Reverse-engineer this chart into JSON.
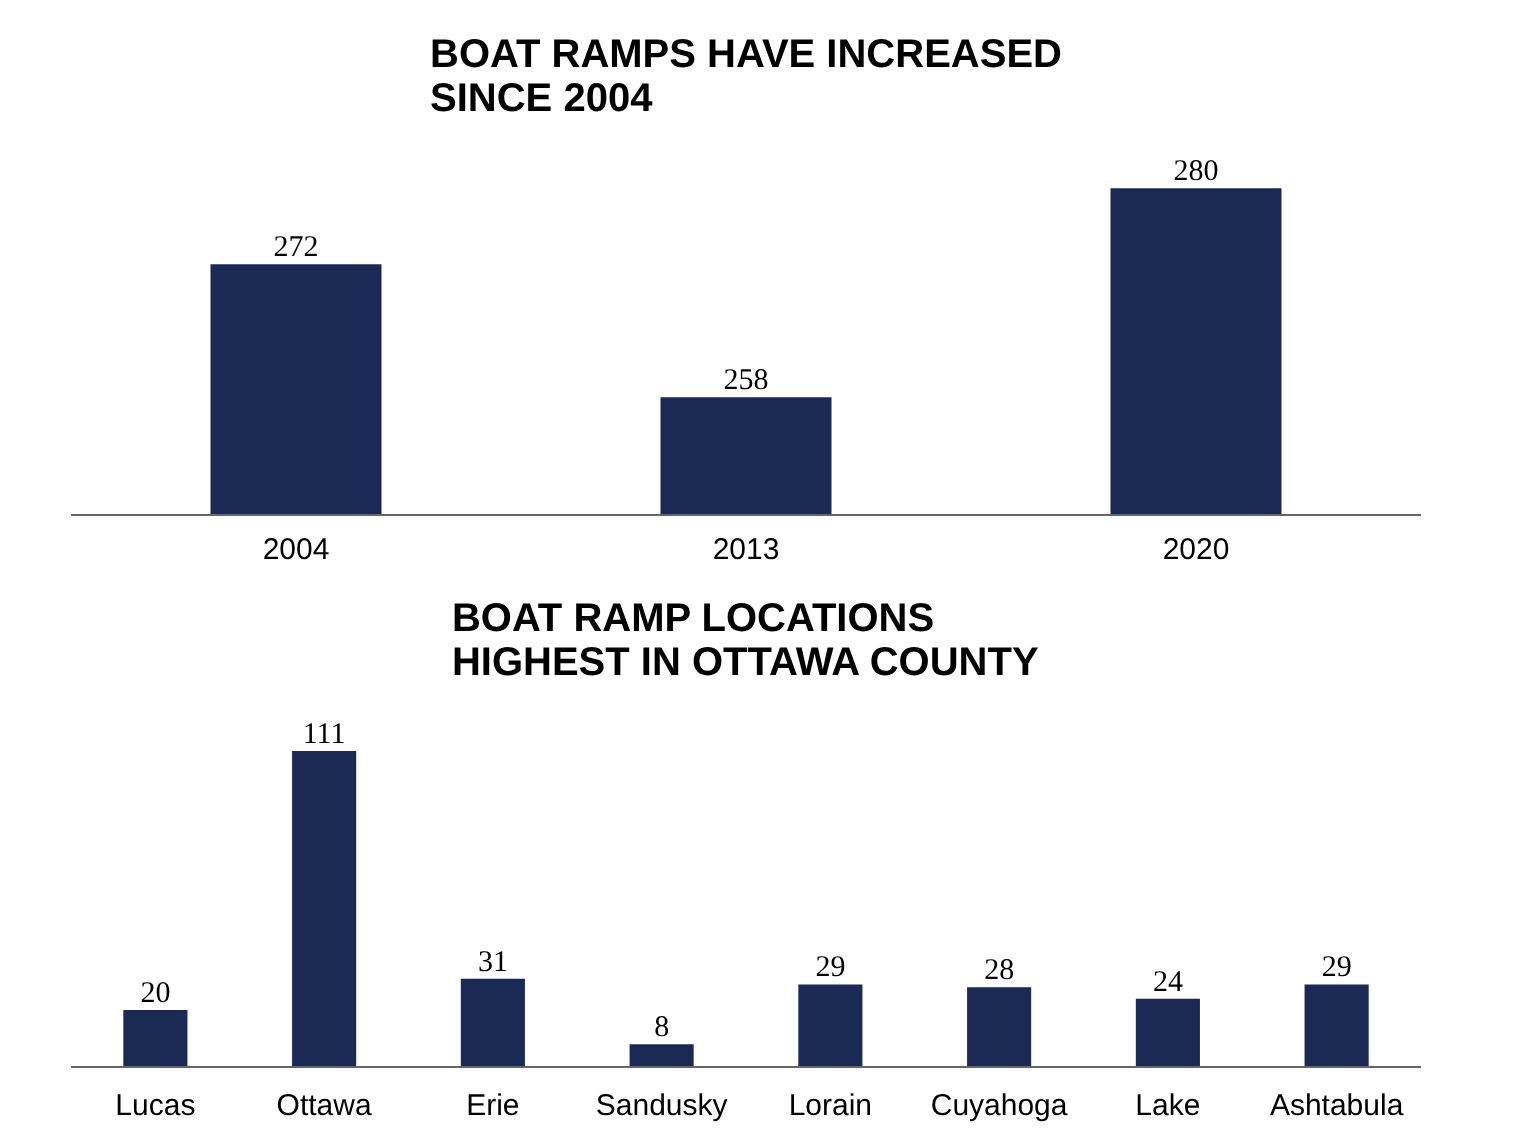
{
  "chart_data": [
    {
      "type": "bar",
      "title": "BOAT RAMPS HAVE INCREASED\nSINCE 2004",
      "categories": [
        "2004",
        "2013",
        "2020"
      ],
      "values": [
        272,
        258,
        280
      ],
      "color": "#1b2a55",
      "ylim": [
        245.6,
        280
      ],
      "data_labels": true,
      "tick_labels": "x"
    },
    {
      "type": "bar",
      "title": "BOAT RAMP LOCATIONS\nHIGHEST IN OTTAWA COUNTY",
      "categories": [
        "Lucas",
        "Ottawa",
        "Erie",
        "Sandusky",
        "Lorain",
        "Cuyahoga",
        "Lake",
        "Ashtabula"
      ],
      "values": [
        20,
        111,
        31,
        8,
        29,
        28,
        24,
        29
      ],
      "color": "#1b2a55",
      "data_labels": true,
      "tick_labels": "x"
    }
  ]
}
